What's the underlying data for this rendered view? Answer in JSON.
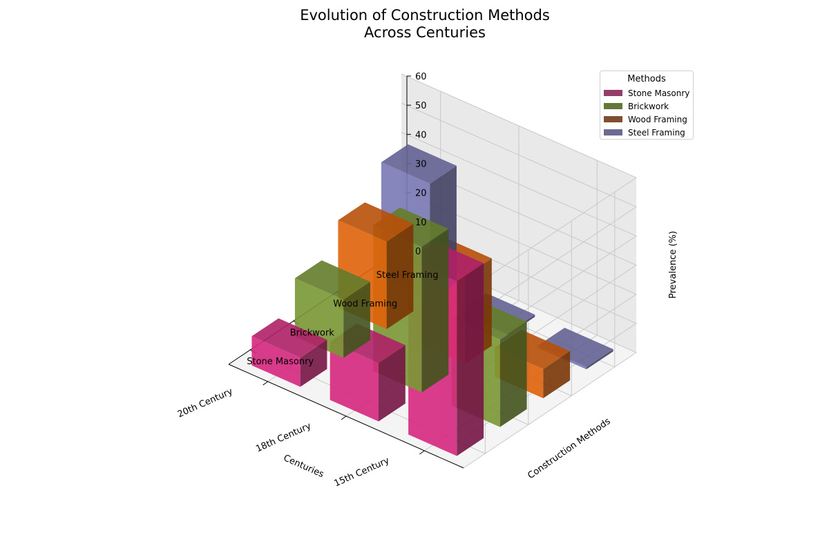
{
  "chart_data": {
    "type": "bar3d",
    "title": "Evolution of Construction Methods\nAcross Centuries",
    "xlabel": "Centuries",
    "ylabel": "Construction Methods",
    "zlabel": "Prevalence (%)",
    "x_categories": [
      "15th Century",
      "18th Century",
      "20th Century"
    ],
    "y_categories": [
      "Stone Masonry",
      "Brickwork",
      "Wood Framing",
      "Steel Framing"
    ],
    "zlim": [
      0,
      60
    ],
    "z_ticks": [
      0,
      10,
      20,
      30,
      40,
      50,
      60
    ],
    "grid": true,
    "legend_title": "Methods",
    "legend_position": "top-right",
    "series": [
      {
        "name": "Stone Masonry",
        "values": [
          60,
          20,
          10
        ],
        "color": "#d6287f",
        "legend_color": "#943f6a"
      },
      {
        "name": "Brickwork",
        "values": [
          30,
          50,
          20
        ],
        "color": "#7a9835",
        "legend_color": "#64783a"
      },
      {
        "name": "Wood Framing",
        "values": [
          10,
          30,
          30
        ],
        "color": "#e0620b",
        "legend_color": "#7e5030"
      },
      {
        "name": "Steel Framing",
        "values": [
          0,
          0,
          40
        ],
        "color": "#7a78b5",
        "legend_color": "#6b6b92"
      }
    ]
  }
}
